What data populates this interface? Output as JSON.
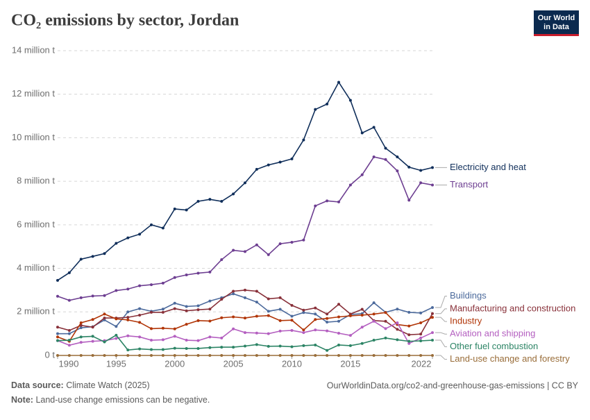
{
  "chart_data": {
    "type": "line",
    "title": "CO₂ emissions by sector, Jordan",
    "x": [
      1990,
      1991,
      1992,
      1993,
      1994,
      1995,
      1996,
      1997,
      1998,
      1999,
      2000,
      2001,
      2002,
      2003,
      2004,
      2005,
      2006,
      2007,
      2008,
      2009,
      2010,
      2011,
      2012,
      2013,
      2014,
      2015,
      2016,
      2017,
      2018,
      2019,
      2020,
      2021,
      2022
    ],
    "xlim": [
      1990,
      2022
    ],
    "xticks": [
      1990,
      1995,
      2000,
      2005,
      2010,
      2015,
      2022
    ],
    "ylim": [
      0,
      14000000
    ],
    "yticks": [
      {
        "value": 0,
        "label": "0 t"
      },
      {
        "value": 2000000,
        "label": "2 million t"
      },
      {
        "value": 4000000,
        "label": "4 million t"
      },
      {
        "value": 6000000,
        "label": "6 million t"
      },
      {
        "value": 8000000,
        "label": "8 million t"
      },
      {
        "value": 10000000,
        "label": "10 million t"
      },
      {
        "value": 12000000,
        "label": "12 million t"
      },
      {
        "value": 14000000,
        "label": "14 million t"
      }
    ],
    "grid": true,
    "series": [
      {
        "name": "Electricity and heat",
        "color": "#0f2e5a",
        "values": [
          3450000,
          3800000,
          4420000,
          4550000,
          4680000,
          5150000,
          5400000,
          5570000,
          6000000,
          5850000,
          6730000,
          6680000,
          7080000,
          7170000,
          7080000,
          7420000,
          7930000,
          8550000,
          8750000,
          8880000,
          9030000,
          9900000,
          11300000,
          11550000,
          12550000,
          11720000,
          10220000,
          10480000,
          9520000,
          9120000,
          8650000,
          8500000,
          8630000
        ]
      },
      {
        "name": "Transport",
        "color": "#6d3e91",
        "values": [
          2720000,
          2530000,
          2650000,
          2730000,
          2750000,
          2980000,
          3050000,
          3200000,
          3250000,
          3320000,
          3580000,
          3700000,
          3780000,
          3830000,
          4400000,
          4830000,
          4770000,
          5080000,
          4630000,
          5130000,
          5200000,
          5300000,
          6870000,
          7100000,
          7050000,
          7830000,
          8300000,
          9120000,
          9000000,
          8480000,
          7130000,
          7930000,
          7830000
        ]
      },
      {
        "name": "Buildings",
        "color": "#4c6a9c",
        "values": [
          1000000,
          1000000,
          1270000,
          1320000,
          1630000,
          1330000,
          2000000,
          2150000,
          2030000,
          2130000,
          2400000,
          2250000,
          2280000,
          2500000,
          2650000,
          2830000,
          2650000,
          2450000,
          2030000,
          2120000,
          1800000,
          1970000,
          1900000,
          1530000,
          1570000,
          1880000,
          1920000,
          2420000,
          1980000,
          2130000,
          1980000,
          1950000,
          2200000
        ]
      },
      {
        "name": "Manufacturing and construction",
        "color": "#883039",
        "values": [
          1300000,
          1150000,
          1380000,
          1300000,
          1720000,
          1720000,
          1750000,
          1850000,
          1980000,
          1980000,
          2150000,
          2050000,
          2100000,
          2130000,
          2580000,
          2950000,
          3000000,
          2950000,
          2600000,
          2650000,
          2300000,
          2080000,
          2180000,
          1900000,
          2350000,
          1900000,
          2120000,
          1600000,
          1570000,
          1200000,
          950000,
          980000,
          1920000
        ]
      },
      {
        "name": "Industry",
        "color": "#b13507",
        "values": [
          850000,
          650000,
          1500000,
          1650000,
          1900000,
          1680000,
          1630000,
          1520000,
          1230000,
          1250000,
          1220000,
          1430000,
          1600000,
          1580000,
          1730000,
          1770000,
          1720000,
          1800000,
          1830000,
          1600000,
          1620000,
          1170000,
          1650000,
          1700000,
          1770000,
          1820000,
          1850000,
          1900000,
          1970000,
          1420000,
          1350000,
          1500000,
          1750000
        ]
      },
      {
        "name": "Aviation and shipping",
        "color": "#b45fc0",
        "values": [
          680000,
          470000,
          600000,
          650000,
          680000,
          780000,
          900000,
          850000,
          700000,
          720000,
          880000,
          700000,
          680000,
          850000,
          800000,
          1220000,
          1050000,
          1030000,
          1000000,
          1120000,
          1150000,
          1050000,
          1170000,
          1130000,
          1020000,
          920000,
          1300000,
          1570000,
          1230000,
          1500000,
          550000,
          800000,
          1050000
        ]
      },
      {
        "name": "Other fuel combustion",
        "color": "#2c8465",
        "values": [
          680000,
          700000,
          850000,
          880000,
          620000,
          930000,
          250000,
          300000,
          270000,
          270000,
          330000,
          320000,
          320000,
          360000,
          380000,
          380000,
          430000,
          500000,
          420000,
          430000,
          400000,
          450000,
          480000,
          230000,
          480000,
          450000,
          550000,
          700000,
          800000,
          720000,
          650000,
          670000,
          700000
        ]
      },
      {
        "name": "Land-use change and forestry",
        "color": "#996d39",
        "values": [
          0,
          0,
          0,
          0,
          0,
          0,
          0,
          0,
          0,
          0,
          0,
          0,
          0,
          0,
          0,
          0,
          0,
          0,
          0,
          0,
          0,
          0,
          0,
          0,
          0,
          0,
          0,
          0,
          0,
          0,
          0,
          0,
          0
        ]
      }
    ]
  },
  "logo": {
    "line1": "Our World",
    "line2": "in Data"
  },
  "footer": {
    "source_label": "Data source:",
    "source": "Climate Watch (2025)",
    "url": "OurWorldinData.org/co2-and-greenhouse-gas-emissions | CC BY",
    "note_label": "Note:",
    "note": "Land-use change emissions can be negative."
  }
}
